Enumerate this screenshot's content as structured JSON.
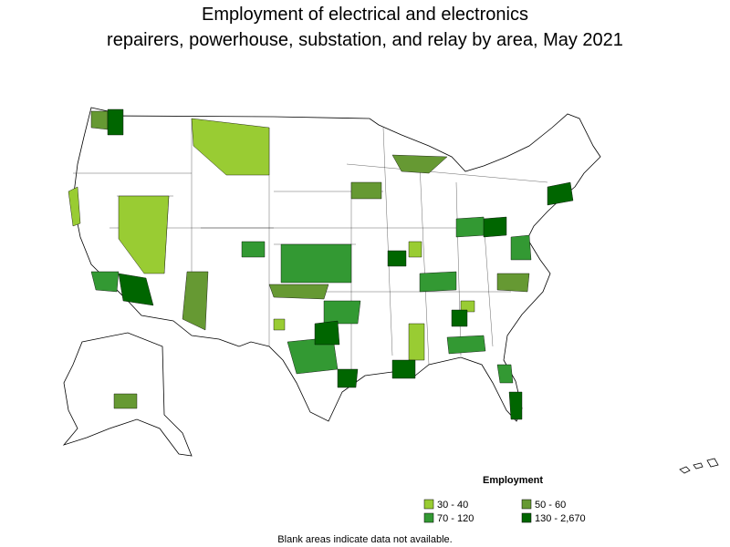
{
  "title": [
    "Employment of electrical and electronics",
    "repairers, powerhouse, substation, and relay by area, May 2021"
  ],
  "legend": {
    "title": "Employment",
    "items": [
      {
        "label": "30 - 40",
        "color": "#99cc33"
      },
      {
        "label": "50 - 60",
        "color": "#669933"
      },
      {
        "label": "70 - 120",
        "color": "#339933"
      },
      {
        "label": "130 - 2,670",
        "color": "#006600"
      }
    ]
  },
  "note": "Blank areas indicate data not available."
}
